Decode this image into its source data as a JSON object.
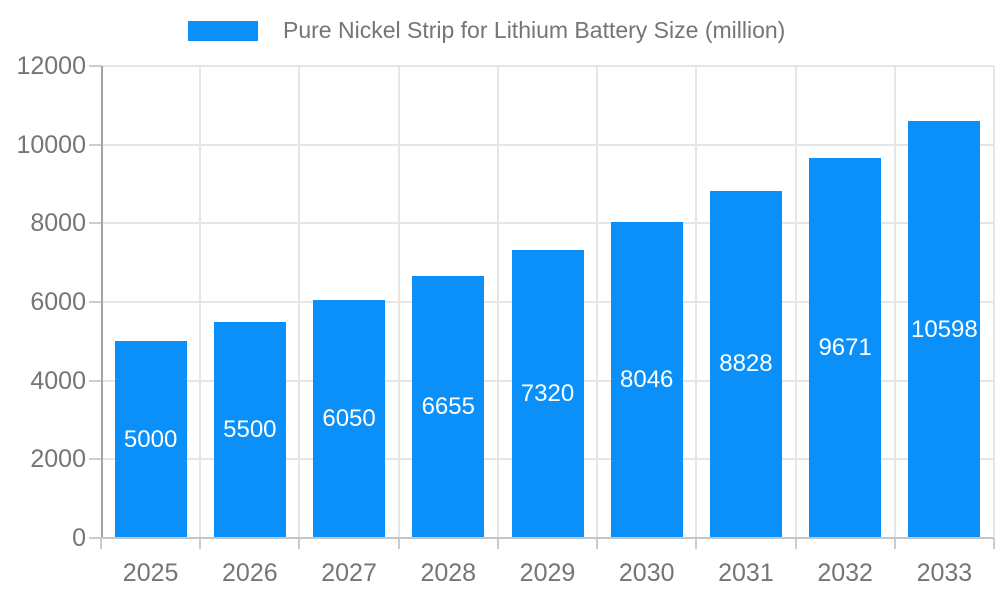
{
  "legend": {
    "items": [
      {
        "label": "Pure Nickel Strip for Lithium Battery Size (million)",
        "swatch_color": "#0a90f8"
      }
    ]
  },
  "chart_data": {
    "type": "bar",
    "title": "",
    "categories": [
      "2025",
      "2026",
      "2027",
      "2028",
      "2029",
      "2030",
      "2031",
      "2032",
      "2033"
    ],
    "series": [
      {
        "name": "Pure Nickel Strip for Lithium Battery Size (million)",
        "values": [
          5000,
          5500,
          6050,
          6655,
          7320,
          8046,
          8828,
          9671,
          10598
        ],
        "color": "#0a90f8"
      }
    ],
    "xlabel": "",
    "ylabel": "",
    "ylim": [
      0,
      12000
    ],
    "yticks": [
      0,
      2000,
      4000,
      6000,
      8000,
      10000,
      12000
    ],
    "grid": true,
    "legend_position": "top-center",
    "data_labels": {
      "position": "inside-center",
      "color": "#ffffff"
    }
  },
  "colors": {
    "bar": "#0a90f8",
    "background": "#ffffff",
    "axis_text": "#757575",
    "legend_text": "#757575",
    "gridline": "#e6e6e6",
    "x_axis_line": "#c6c6c6",
    "y_axis_line": "#a3a3a3",
    "tick": "#cccccc",
    "data_label_text": "#ffffff"
  }
}
